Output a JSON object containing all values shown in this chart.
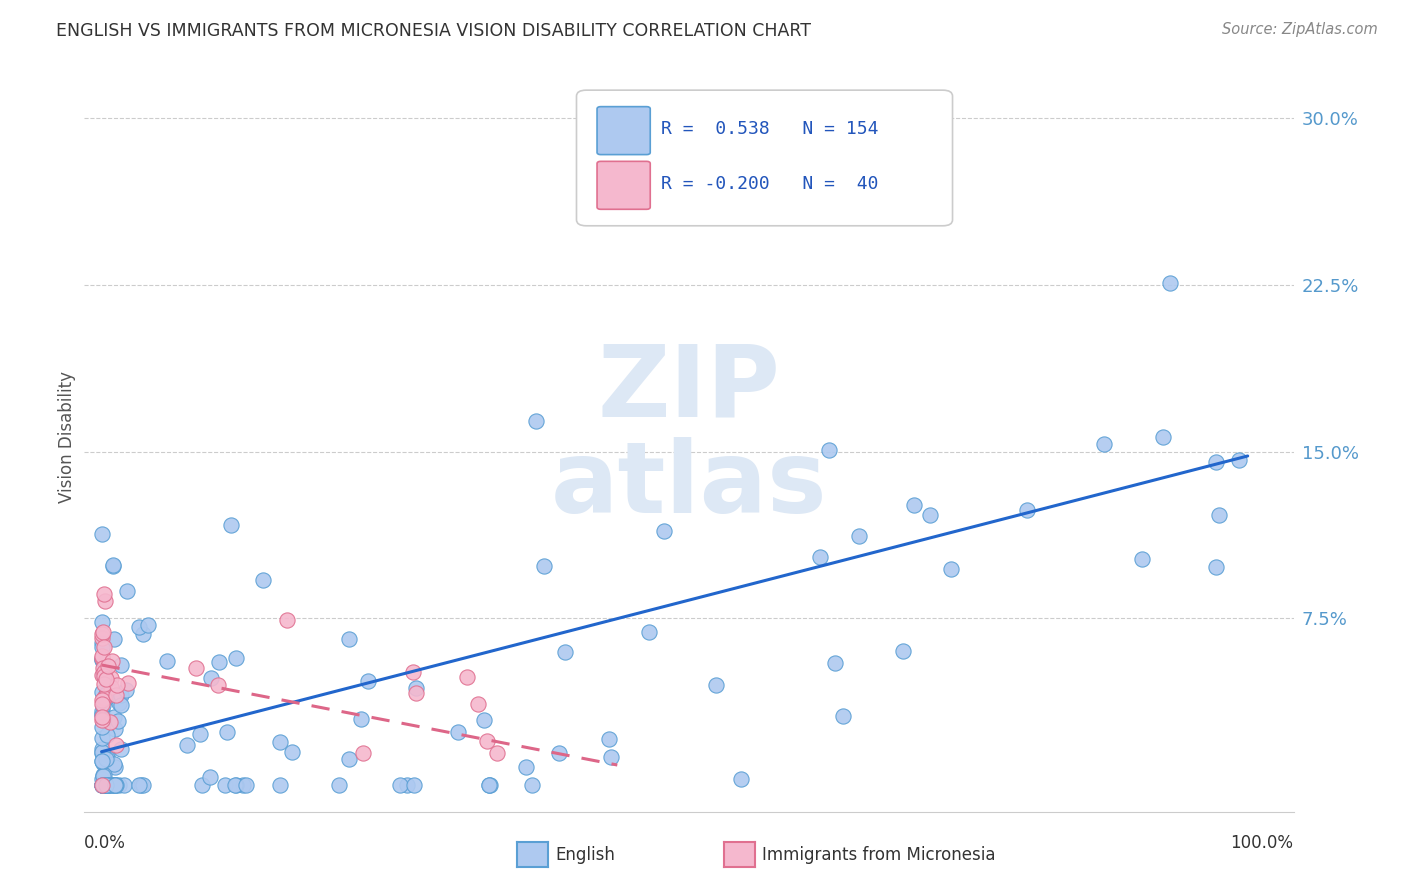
{
  "title": "ENGLISH VS IMMIGRANTS FROM MICRONESIA VISION DISABILITY CORRELATION CHART",
  "source": "Source: ZipAtlas.com",
  "ylabel": "Vision Disability",
  "ytick_labels": [
    "7.5%",
    "15.0%",
    "22.5%",
    "30.0%"
  ],
  "ytick_values": [
    0.075,
    0.15,
    0.225,
    0.3
  ],
  "xlim": [
    0.0,
    1.0
  ],
  "ylim": [
    0.0,
    0.32
  ],
  "legend_english_R": "0.538",
  "legend_english_N": "154",
  "legend_micro_R": "-0.200",
  "legend_micro_N": "40",
  "english_face_color": "#aec9f0",
  "english_edge_color": "#5a9fd4",
  "micro_face_color": "#f5b8ce",
  "micro_edge_color": "#e07090",
  "english_line_color": "#2266cc",
  "micro_line_color": "#dd6688",
  "bg_color": "#ffffff",
  "grid_color": "#cccccc",
  "tick_color": "#5599cc",
  "title_color": "#333333",
  "watermark_color": "#dde8f5"
}
